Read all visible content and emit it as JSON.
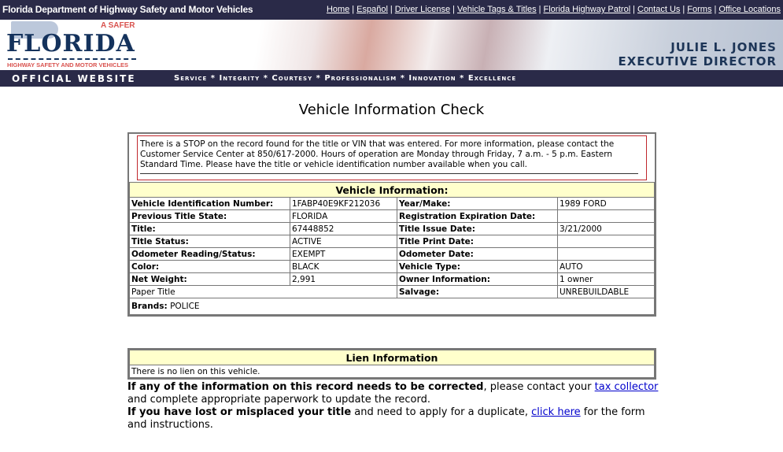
{
  "header": {
    "agency": "Florida Department of Highway Safety and Motor Vehicles",
    "links": [
      "Home",
      "Español",
      "Driver License",
      "Vehicle Tags & Titles",
      "Florida Highway Patrol",
      "Contact Us",
      "Forms",
      "Office Locations"
    ]
  },
  "banner": {
    "logo_tagline": "A SAFER",
    "logo_word": "FLORIDA",
    "logo_sub": "HIGHWAY SAFETY AND MOTOR VEHICLES",
    "director_name": "JULIE L. JONES",
    "director_title": "EXECUTIVE DIRECTOR"
  },
  "nav": {
    "official": "OFFICIAL WEBSITE",
    "values": "Service * Integrity * Courtesy * Professionalism * Innovation * Excellence"
  },
  "page_title": "Vehicle Information Check",
  "stop_notice": "There is a STOP on the record found for the title or VIN that was entered. For more information, please contact the Customer Service Center at 850/617-2000. Hours of operation are Monday through Friday, 7 a.m. - 5 p.m. Eastern Standard Time. Please have the title or vehicle identification number available when you call.",
  "vehicle": {
    "heading": "Vehicle Information:",
    "rows": [
      [
        "Vehicle Identification Number:",
        "1FABP40E9KF212036",
        "Year/Make:",
        "1989 FORD"
      ],
      [
        "Previous Title State:",
        "FLORIDA",
        "Registration Expiration Date:",
        ""
      ],
      [
        "Title:",
        "67448852",
        "Title Issue Date:",
        "3/21/2000"
      ],
      [
        "Title Status:",
        "ACTIVE",
        "Title Print Date:",
        ""
      ],
      [
        "Odometer Reading/Status:",
        "EXEMPT",
        "Odometer Date:",
        ""
      ],
      [
        "Color:",
        "BLACK",
        "Vehicle Type:",
        "AUTO"
      ],
      [
        "Net Weight:",
        "2,991",
        "Owner Information:",
        "1 owner"
      ],
      [
        "Paper Title",
        "",
        "Salvage:",
        "UNREBUILDABLE"
      ]
    ],
    "brands_label": "Brands:",
    "brands_value": "POLICE"
  },
  "lien": {
    "heading": "Lien Information",
    "text": "There is no lien on this vehicle."
  },
  "footer": {
    "p1_bold": "If any of the information on this record needs to be corrected",
    "p1_a": ", please contact your ",
    "p1_link": "tax collector",
    "p1_b": " and complete appropriate paperwork to update the record.",
    "p2_bold": "If you have lost or misplaced your title",
    "p2_a": " and need to apply for a duplicate, ",
    "p2_link": "click here",
    "p2_b": " for the form and instructions."
  }
}
